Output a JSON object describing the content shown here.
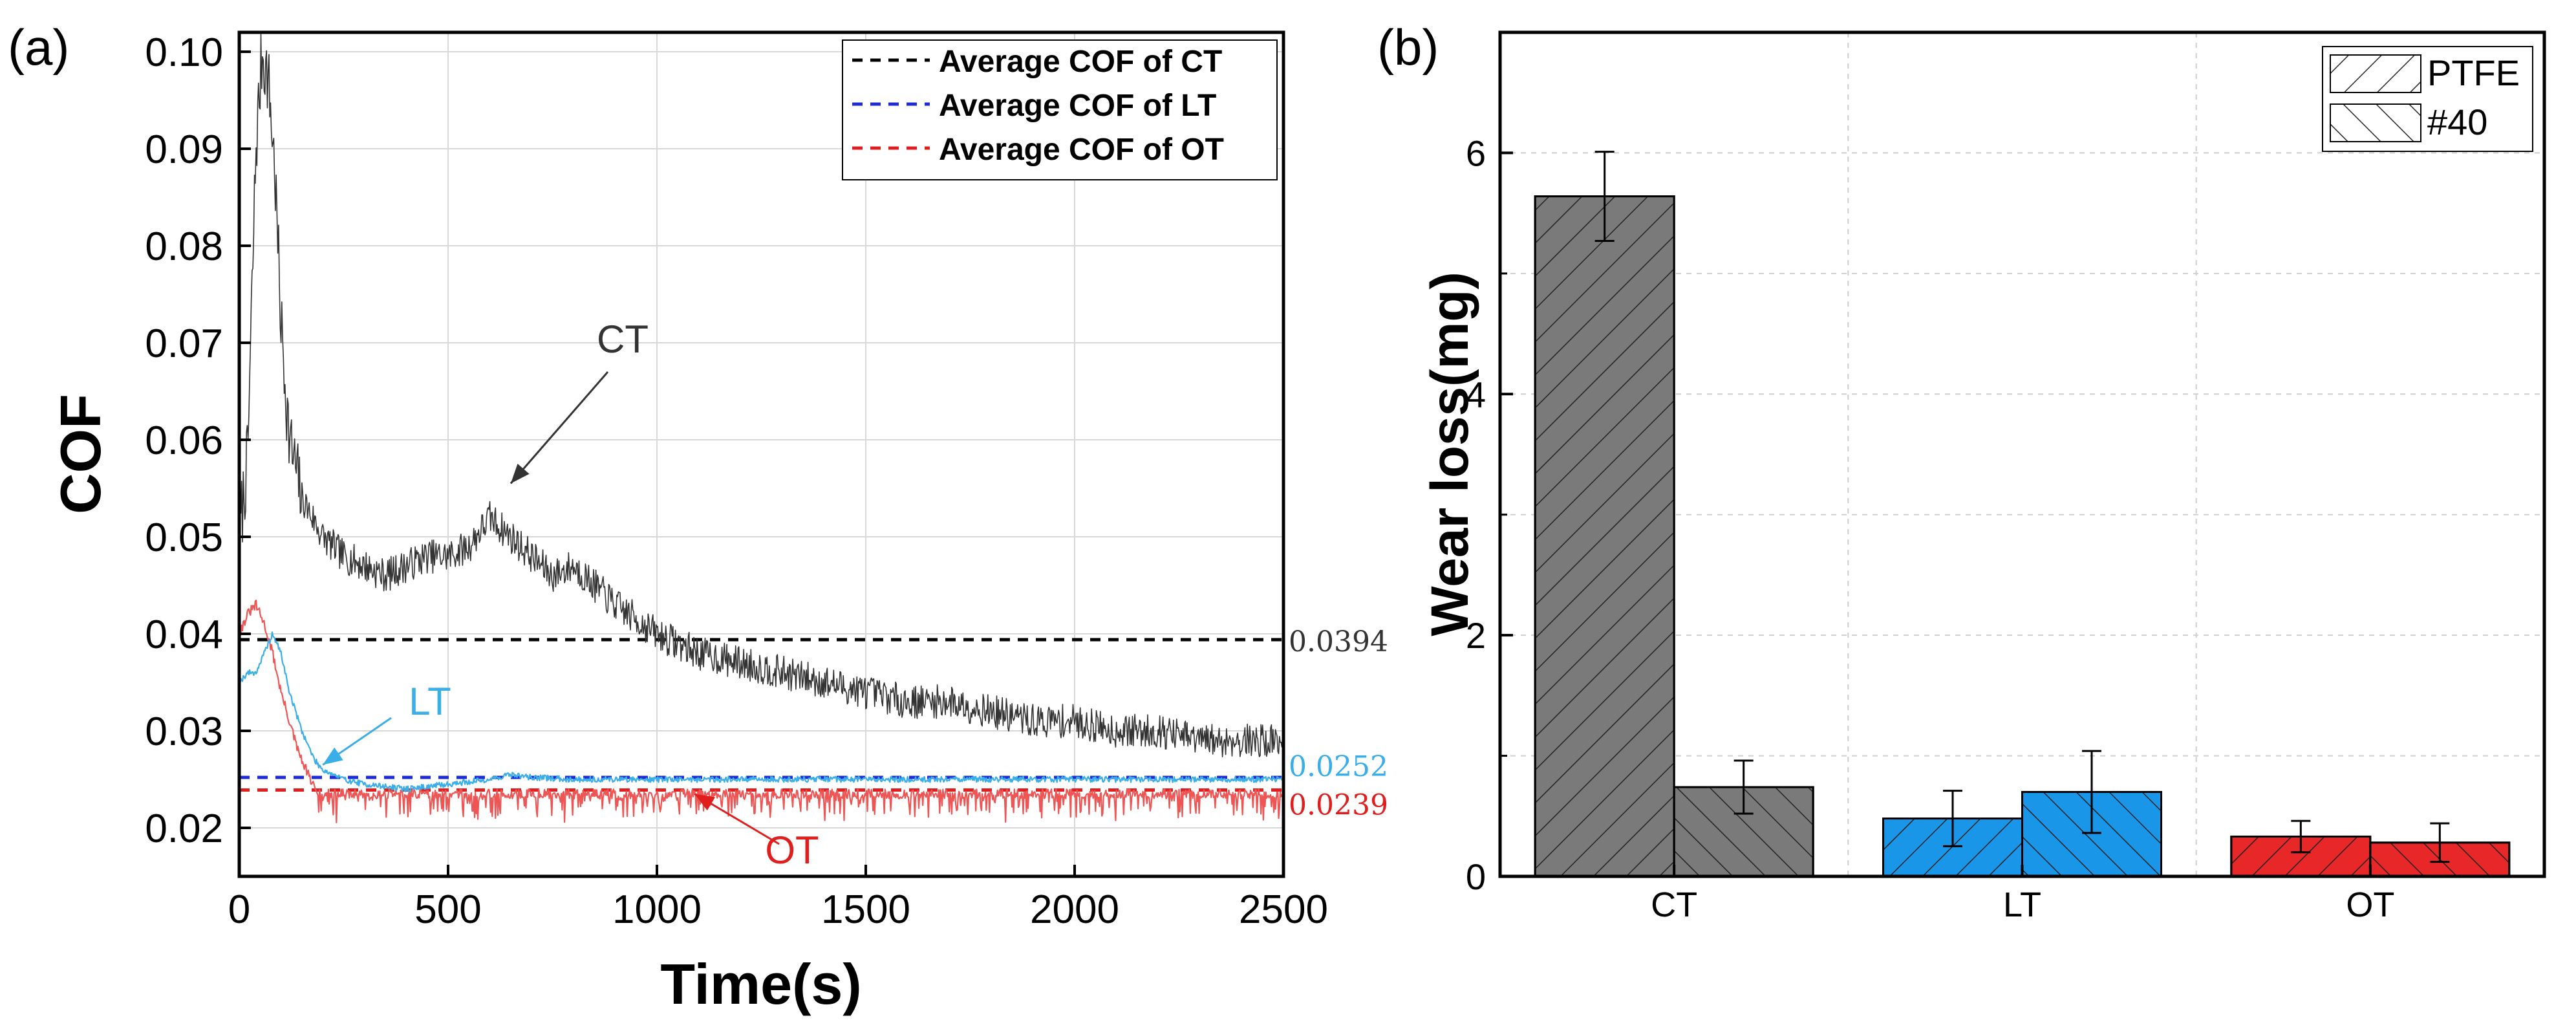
{
  "chart_data": [
    {
      "panel": "(a)",
      "type": "line",
      "xlabel": "Time(s)",
      "ylabel": "COF",
      "xlim": [
        0,
        2500
      ],
      "ylim": [
        0.015,
        0.102
      ],
      "xticks": [
        "0",
        "500",
        "1000",
        "1500",
        "2000",
        "2500"
      ],
      "yticks": [
        "0.02",
        "0.03",
        "0.04",
        "0.05",
        "0.06",
        "0.07",
        "0.08",
        "0.09",
        "0.10"
      ],
      "grid": true,
      "legend_position": "top-right",
      "legend": [
        "Average COF of CT",
        "Average COF of LT",
        "Average COF of OT"
      ],
      "series": [
        {
          "name": "CT",
          "color": "#333333",
          "x": [
            0,
            20,
            40,
            55,
            70,
            85,
            100,
            120,
            150,
            200,
            250,
            300,
            350,
            400,
            450,
            500,
            550,
            600,
            650,
            700,
            750,
            800,
            900,
            1000,
            1100,
            1200,
            1300,
            1400,
            1500,
            1600,
            1700,
            1800,
            1900,
            2000,
            2100,
            2200,
            2300,
            2400,
            2500
          ],
          "y": [
            0.05,
            0.058,
            0.09,
            0.1,
            0.097,
            0.088,
            0.072,
            0.06,
            0.054,
            0.05,
            0.048,
            0.047,
            0.046,
            0.047,
            0.048,
            0.048,
            0.049,
            0.052,
            0.05,
            0.048,
            0.046,
            0.047,
            0.043,
            0.04,
            0.038,
            0.037,
            0.036,
            0.035,
            0.034,
            0.033,
            0.033,
            0.032,
            0.031,
            0.031,
            0.03,
            0.03,
            0.029,
            0.029,
            0.029
          ]
        },
        {
          "name": "LT",
          "color": "#3aaee8",
          "x": [
            0,
            20,
            40,
            60,
            80,
            100,
            120,
            150,
            180,
            200,
            250,
            300,
            400,
            500,
            600,
            650,
            700,
            800,
            1000,
            1500,
            2000,
            2500
          ],
          "y": [
            0.035,
            0.036,
            0.036,
            0.038,
            0.04,
            0.038,
            0.034,
            0.03,
            0.027,
            0.026,
            0.025,
            0.0245,
            0.024,
            0.0245,
            0.025,
            0.0255,
            0.0252,
            0.025,
            0.025,
            0.025,
            0.025,
            0.025
          ]
        },
        {
          "name": "OT",
          "color": "#ee5555",
          "x": [
            0,
            20,
            40,
            60,
            80,
            100,
            120,
            140,
            160,
            180,
            200,
            300,
            500,
            1000,
            1500,
            2000,
            2500
          ],
          "y": [
            0.04,
            0.042,
            0.043,
            0.041,
            0.038,
            0.034,
            0.031,
            0.028,
            0.026,
            0.024,
            0.0235,
            0.0235,
            0.0235,
            0.0235,
            0.0235,
            0.0235,
            0.0235
          ]
        }
      ],
      "averages": [
        {
          "name": "Average COF of CT",
          "value": 0.0394,
          "label": "0.0394",
          "color": "#000000",
          "label_color": "#333333"
        },
        {
          "name": "Average COF of LT",
          "value": 0.0252,
          "label": "0.0252",
          "color": "#1d2bd6",
          "label_color": "#3aaee8"
        },
        {
          "name": "Average COF of OT",
          "value": 0.0239,
          "label": "0.0239",
          "color": "#e01e1e",
          "label_color": "#e01e1e"
        }
      ],
      "annotations": [
        {
          "text": "CT",
          "color": "#333333",
          "target": [
            650,
            0.0555
          ]
        },
        {
          "text": "LT",
          "color": "#3aaee8",
          "target": [
            200,
            0.0265
          ]
        },
        {
          "text": "OT",
          "color": "#e01e1e",
          "target": [
            1090,
            0.0235
          ]
        }
      ]
    },
    {
      "panel": "(b)",
      "type": "bar",
      "ylabel": "Wear loss(mg)",
      "xlabel": "",
      "ylim": [
        0,
        7
      ],
      "yticks": [
        "0",
        "2",
        "4",
        "6"
      ],
      "categories": [
        "CT",
        "LT",
        "OT"
      ],
      "category_colors": [
        "#7a7a7a",
        "#1a96e8",
        "#e82828"
      ],
      "grid": true,
      "legend_position": "top-right",
      "legend": [
        "PTFE",
        "#40"
      ],
      "series": [
        {
          "name": "PTFE",
          "hatch": "forward-diagonal",
          "values": [
            5.64,
            0.48,
            0.33
          ],
          "errors": [
            0.37,
            0.23,
            0.13
          ]
        },
        {
          "name": "#40",
          "hatch": "back-diagonal",
          "values": [
            0.74,
            0.7,
            0.28
          ],
          "errors": [
            0.22,
            0.34,
            0.16
          ]
        }
      ]
    }
  ]
}
